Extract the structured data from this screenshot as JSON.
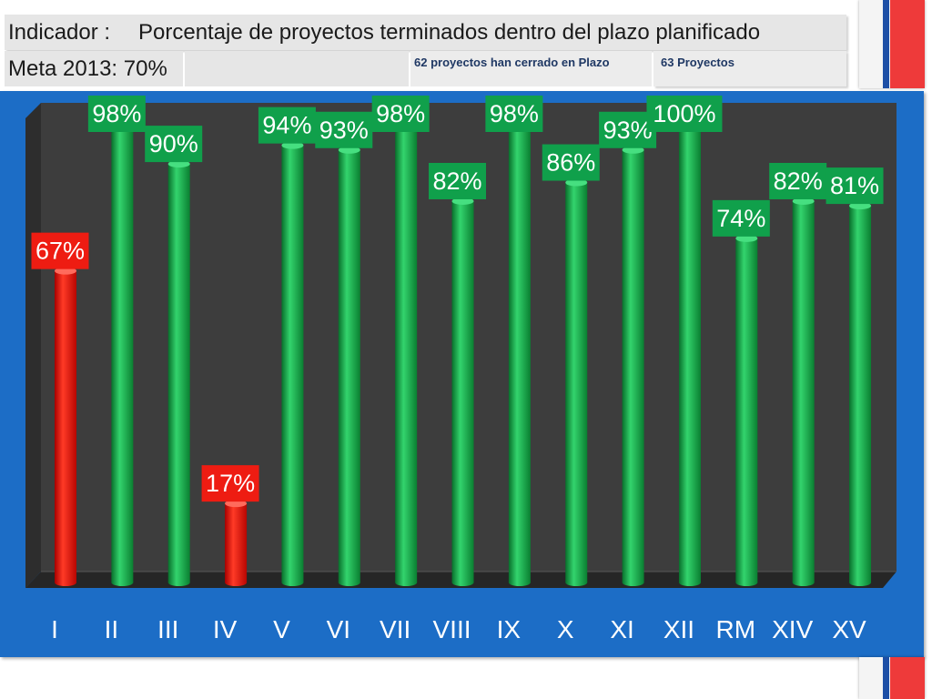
{
  "header": {
    "indicator_label": "Indicador :",
    "goal": "Meta 2013: 70%",
    "closed_on_time": "62 proyectos han cerrado en Plazo",
    "total_projects": "63 Proyectos"
  },
  "colors": {
    "panel": "#1c6dc6",
    "above_target": "#10a04b",
    "below_target": "#ee1c12",
    "flag_blue": "#1d4fa6",
    "flag_red": "#ee3a3a",
    "label_text": "#ffffff"
  },
  "chart_data": {
    "type": "bar",
    "title": "Porcentaje de proyectos terminados dentro del plazo planificado",
    "categories": [
      "I",
      "II",
      "III",
      "IV",
      "V",
      "VI",
      "VII",
      "VIII",
      "IX",
      "X",
      "XI",
      "XII",
      "RM",
      "XIV",
      "XV"
    ],
    "values": [
      67,
      98,
      90,
      17,
      94,
      93,
      98,
      82,
      98,
      86,
      93,
      100,
      74,
      82,
      81
    ],
    "unit": "%",
    "ylim": [
      0,
      100
    ],
    "color_threshold": 70
  }
}
